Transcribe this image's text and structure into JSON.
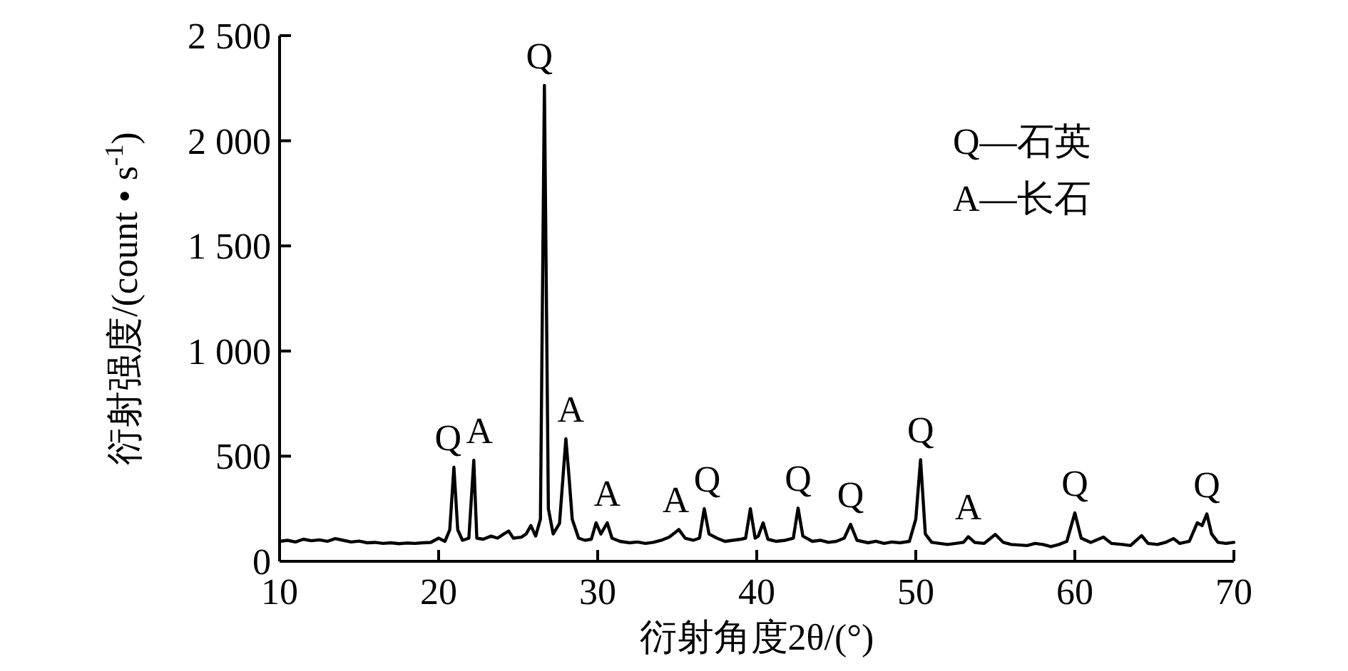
{
  "chart_data": {
    "type": "line",
    "xlabel": "衍射角度2θ/(°)",
    "ylabel": "衍射强度/(count • s$^{-1}$)",
    "xlim": [
      10,
      70
    ],
    "ylim": [
      0,
      2500
    ],
    "xticks": [
      10,
      20,
      30,
      40,
      50,
      60,
      70
    ],
    "yticks": [
      0,
      500,
      {
        "value": 1000,
        "label": "1 000"
      },
      {
        "value": 1500,
        "label": "1 500"
      },
      {
        "value": 2000,
        "label": "2 000"
      },
      {
        "value": 2500,
        "label": "2 500"
      }
    ],
    "grid": false,
    "marker": "none",
    "line_style": "solid",
    "series": [
      {
        "color": "#000000",
        "x": [
          10,
          10.5,
          11,
          11.5,
          12,
          12.5,
          13,
          13.5,
          14,
          14.5,
          15,
          15.5,
          16,
          16.5,
          17,
          17.5,
          18,
          18.5,
          19,
          19.5,
          20,
          20.4,
          20.7,
          20.96,
          21.2,
          21.5,
          21.9,
          22.21,
          22.4,
          22.8,
          23.3,
          23.7,
          24.1,
          24.4,
          24.7,
          25.2,
          25.5,
          25.8,
          26.1,
          26.4,
          26.65,
          26.9,
          27.2,
          27.6,
          28.0,
          28.2,
          28.4,
          28.8,
          29.2,
          29.6,
          29.9,
          30.2,
          30.6,
          30.9,
          31.4,
          32,
          32.5,
          33,
          33.5,
          34,
          34.5,
          35.1,
          35.5,
          36,
          36.4,
          36.7,
          37,
          37.5,
          38,
          38.5,
          39,
          39.3,
          39.6,
          39.9,
          40.1,
          40.4,
          40.7,
          41.2,
          41.8,
          42.3,
          42.6,
          42.9,
          43.5,
          44,
          44.5,
          45,
          45.5,
          45.9,
          46.3,
          47,
          47.5,
          48,
          48.5,
          49,
          49.6,
          50.0,
          50.3,
          50.6,
          51,
          51.5,
          52,
          52.5,
          53,
          53.3,
          53.7,
          54.3,
          55,
          55.5,
          56,
          57,
          57.5,
          58,
          58.5,
          59,
          59.5,
          60,
          60.4,
          61,
          61.8,
          62.3,
          63,
          63.5,
          64.2,
          64.6,
          65.2,
          65.7,
          66.2,
          66.6,
          67.2,
          67.7,
          68.0,
          68.3,
          68.6,
          69,
          69.5,
          70
        ],
        "values": [
          95,
          100,
          92,
          105,
          98,
          102,
          95,
          108,
          100,
          92,
          96,
          88,
          90,
          85,
          88,
          84,
          87,
          85,
          88,
          90,
          110,
          95,
          150,
          447,
          150,
          100,
          110,
          480,
          110,
          105,
          120,
          110,
          130,
          144,
          110,
          115,
          130,
          170,
          120,
          200,
          2263,
          250,
          130,
          180,
          583,
          400,
          200,
          110,
          100,
          105,
          183,
          130,
          183,
          110,
          95,
          88,
          92,
          85,
          90,
          100,
          115,
          151,
          110,
          100,
          110,
          250,
          130,
          110,
          95,
          100,
          105,
          110,
          250,
          110,
          120,
          183,
          105,
          95,
          100,
          110,
          253,
          120,
          95,
          100,
          90,
          95,
          110,
          176,
          100,
          88,
          95,
          85,
          92,
          88,
          95,
          200,
          483,
          130,
          90,
          85,
          80,
          85,
          90,
          117,
          90,
          85,
          128,
          90,
          80,
          75,
          85,
          80,
          70,
          80,
          95,
          230,
          110,
          90,
          115,
          85,
          80,
          75,
          122,
          85,
          80,
          90,
          108,
          85,
          95,
          183,
          170,
          225,
          130,
          90,
          85,
          90
        ]
      }
    ],
    "annotations": [
      {
        "text": "Q",
        "x": 20.96,
        "y": 447
      },
      {
        "text": "A",
        "x": 22.21,
        "y": 480
      },
      {
        "text": "Q",
        "x": 26.65,
        "y": 2263
      },
      {
        "text": "A",
        "x": 28.0,
        "y": 583
      },
      {
        "text": "A",
        "x": 30.6,
        "y": 183
      },
      {
        "text": "A",
        "x": 35.1,
        "y": 151
      },
      {
        "text": "Q",
        "x": 36.7,
        "y": 250
      },
      {
        "text": "Q",
        "x": 42.6,
        "y": 253
      },
      {
        "text": "Q",
        "x": 45.9,
        "y": 176
      },
      {
        "text": "Q",
        "x": 50.3,
        "y": 483
      },
      {
        "text": "A",
        "x": 53.3,
        "y": 117
      },
      {
        "text": "Q",
        "x": 60,
        "y": 230
      },
      {
        "text": "Q",
        "x": 68.3,
        "y": 225
      },
      "Q—石英",
      "A—长石"
    ]
  }
}
